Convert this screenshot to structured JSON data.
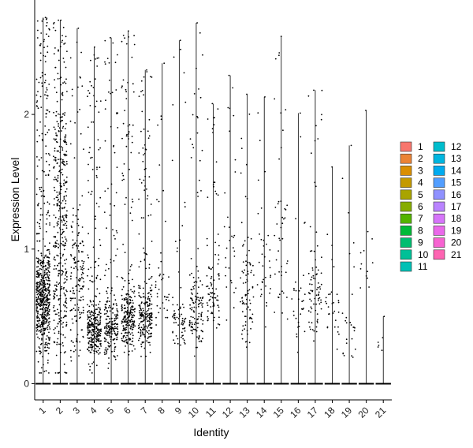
{
  "chart_data": {
    "type": "violin-jitter",
    "title": "",
    "xlabel": "Identity",
    "ylabel": "Expression Level",
    "categories": [
      "1",
      "2",
      "3",
      "4",
      "5",
      "6",
      "7",
      "8",
      "9",
      "10",
      "11",
      "12",
      "13",
      "14",
      "15",
      "16",
      "17",
      "18",
      "19",
      "20",
      "21"
    ],
    "y_ticks": [
      0,
      1,
      2
    ],
    "y_tick_labels": [
      "0",
      "1",
      "2"
    ],
    "ylim": [
      -0.12,
      2.85
    ],
    "grid": false,
    "legend_position": "right",
    "legend_columns": 2,
    "series": [
      {
        "name": "1",
        "color": "#F8766D",
        "max_expression": 2.72,
        "cluster_range": [
          0.25,
          1.0
        ],
        "approx_points": 620
      },
      {
        "name": "2",
        "color": "#EB8335",
        "max_expression": 2.7,
        "cluster_range": [
          0.2,
          2.2
        ],
        "approx_points": 420
      },
      {
        "name": "3",
        "color": "#DA8F00",
        "max_expression": 2.64,
        "cluster_range": [
          0.3,
          1.2
        ],
        "approx_points": 170
      },
      {
        "name": "4",
        "color": "#C49A00",
        "max_expression": 2.5,
        "cluster_range": [
          0.2,
          0.6
        ],
        "approx_points": 320
      },
      {
        "name": "5",
        "color": "#A9A400",
        "max_expression": 2.57,
        "cluster_range": [
          0.2,
          0.6
        ],
        "approx_points": 230
      },
      {
        "name": "6",
        "color": "#86AC00",
        "max_expression": 2.62,
        "cluster_range": [
          0.3,
          0.7
        ],
        "approx_points": 260
      },
      {
        "name": "7",
        "color": "#53B400",
        "max_expression": 2.33,
        "cluster_range": [
          0.3,
          0.7
        ],
        "approx_points": 240
      },
      {
        "name": "8",
        "color": "#00BA38",
        "max_expression": 2.38,
        "cluster_range": [
          0.4,
          0.9
        ],
        "approx_points": 40
      },
      {
        "name": "9",
        "color": "#00BE70",
        "max_expression": 2.55,
        "cluster_range": [
          0.3,
          0.6
        ],
        "approx_points": 70
      },
      {
        "name": "10",
        "color": "#00C097",
        "max_expression": 2.68,
        "cluster_range": [
          0.3,
          0.8
        ],
        "approx_points": 130
      },
      {
        "name": "11",
        "color": "#00C0B5",
        "max_expression": 2.08,
        "cluster_range": [
          0.4,
          0.9
        ],
        "approx_points": 90
      },
      {
        "name": "12",
        "color": "#00BDCD",
        "max_expression": 2.29,
        "cluster_range": [
          0.5,
          1.5
        ],
        "approx_points": 30
      },
      {
        "name": "13",
        "color": "#00B6E0",
        "max_expression": 2.15,
        "cluster_range": [
          0.3,
          0.9
        ],
        "approx_points": 85
      },
      {
        "name": "14",
        "color": "#00ABEF",
        "max_expression": 2.13,
        "cluster_range": [
          0.4,
          1.2
        ],
        "approx_points": 35
      },
      {
        "name": "15",
        "color": "#529EFF",
        "max_expression": 2.58,
        "cluster_range": [
          0.4,
          1.5
        ],
        "approx_points": 45
      },
      {
        "name": "16",
        "color": "#8F91FF",
        "max_expression": 2.01,
        "cluster_range": [
          0.3,
          0.8
        ],
        "approx_points": 30
      },
      {
        "name": "17",
        "color": "#B983FF",
        "max_expression": 2.18,
        "cluster_range": [
          0.4,
          0.9
        ],
        "approx_points": 80
      },
      {
        "name": "18",
        "color": "#D675FA",
        "max_expression": 1.61,
        "cluster_range": [
          0.3,
          0.7
        ],
        "approx_points": 30
      },
      {
        "name": "19",
        "color": "#EA69EA",
        "max_expression": 1.77,
        "cluster_range": [
          0.2,
          0.6
        ],
        "approx_points": 25
      },
      {
        "name": "20",
        "color": "#F763D1",
        "max_expression": 2.03,
        "cluster_range": [
          0.5,
          1.0
        ],
        "approx_points": 12
      },
      {
        "name": "21",
        "color": "#FE64B2",
        "max_expression": 0.5,
        "cluster_range": [
          0.2,
          0.5
        ],
        "approx_points": 5
      }
    ]
  }
}
